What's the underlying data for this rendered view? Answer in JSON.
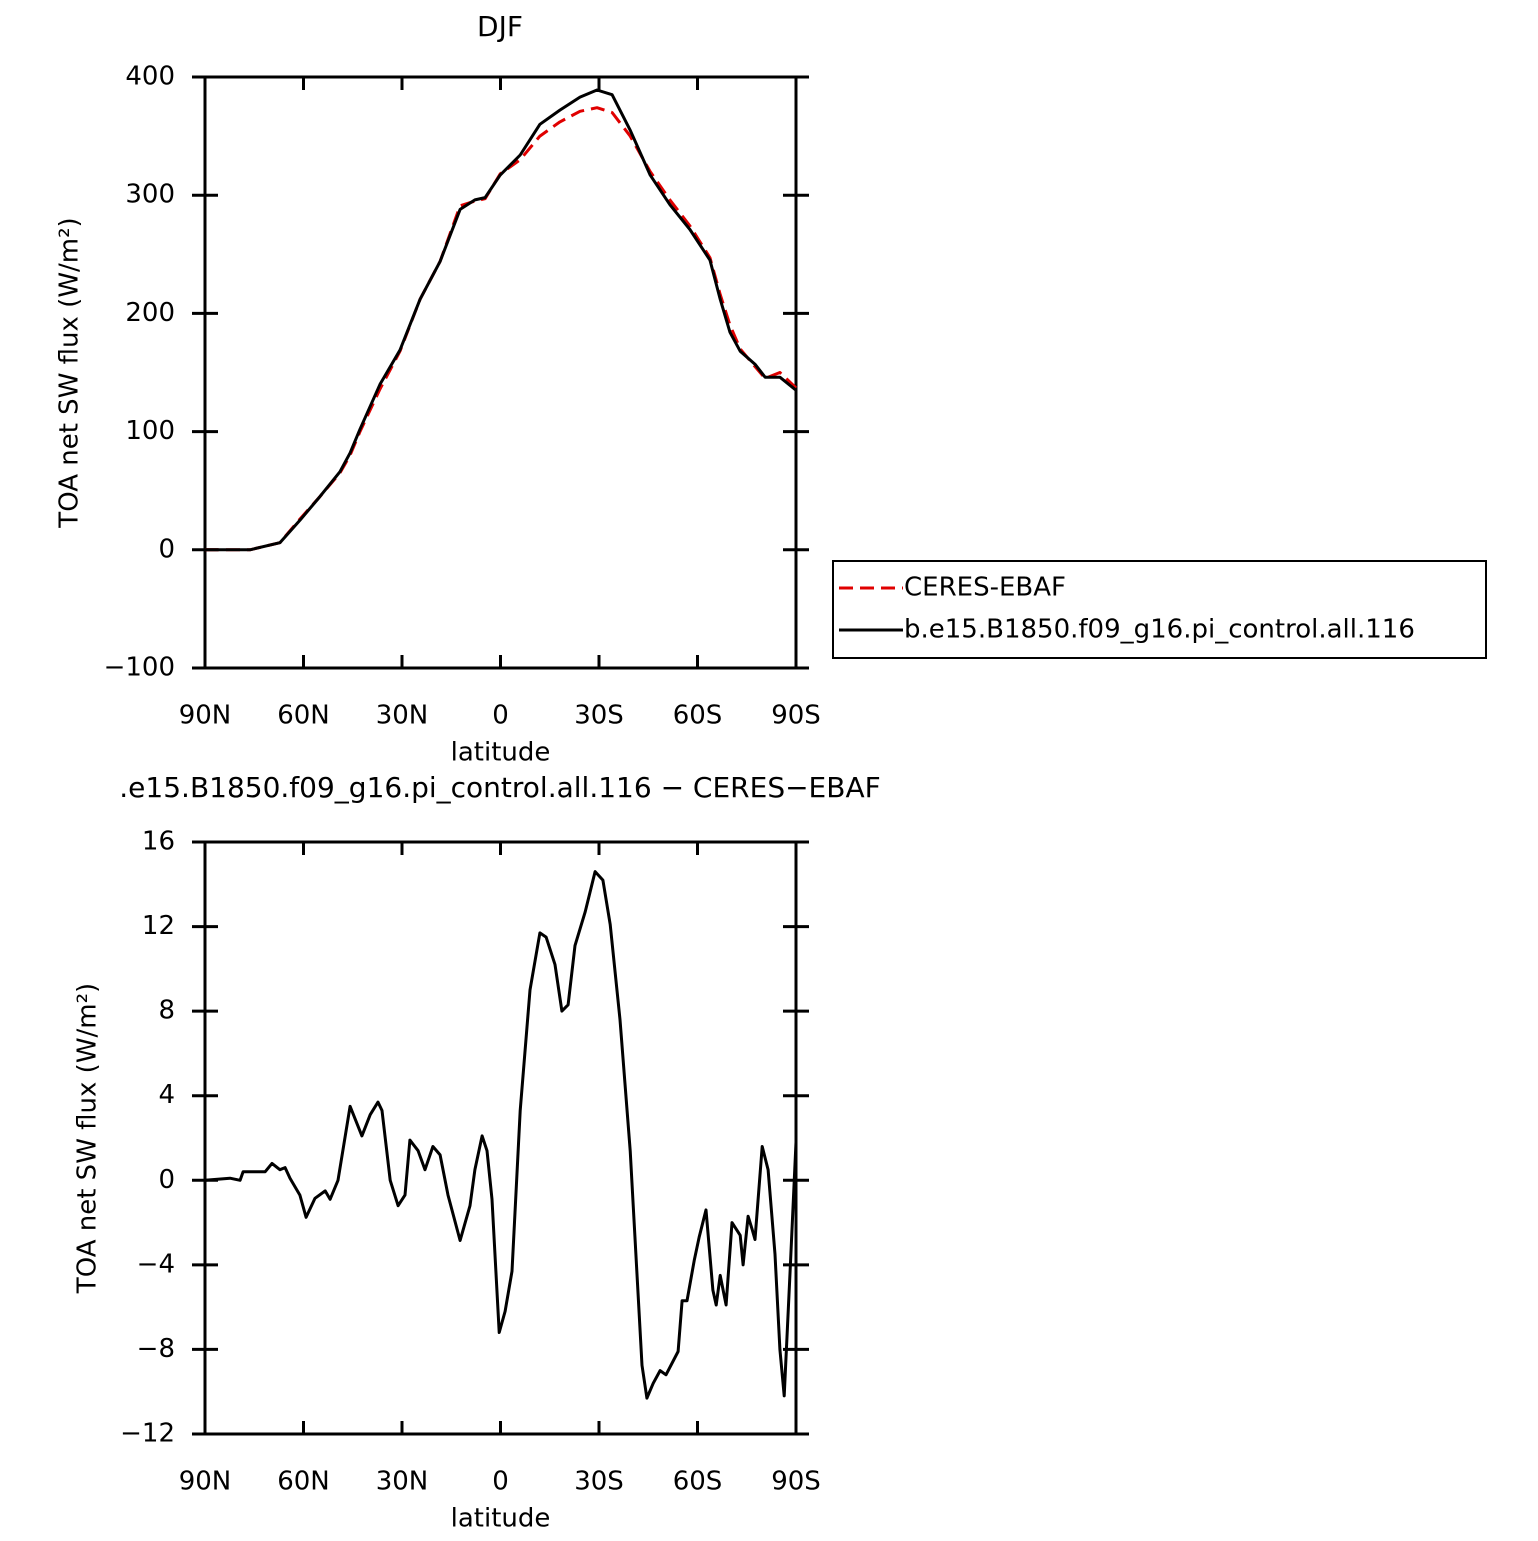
{
  "chart_data": [
    {
      "type": "line",
      "title": "DJF",
      "xlabel": "latitude",
      "ylabel": "TOA net SW flux (W/m²)",
      "xlim": [
        90,
        -90
      ],
      "xticks": [
        {
          "value": 90,
          "label": "90N"
        },
        {
          "value": 60,
          "label": "60N"
        },
        {
          "value": 30,
          "label": "30N"
        },
        0,
        {
          "value": -30,
          "label": "30S"
        },
        {
          "value": -60,
          "label": "60S"
        },
        {
          "value": -90,
          "label": "90S"
        }
      ],
      "ylim": [
        -100,
        400
      ],
      "yticks": [
        {
          "value": -100,
          "label": "−100"
        },
        0,
        100,
        200,
        300,
        400
      ],
      "legend": "right",
      "x": [
        90,
        76.3,
        67.2,
        61.1,
        55,
        48.9,
        45.8,
        42.8,
        36.7,
        30.6,
        24.5,
        18.4,
        12.3,
        7.8,
        4.7,
        0.1,
        -6,
        -12,
        -18.1,
        -24.2,
        -29.4,
        -34,
        -39.5,
        -45.6,
        -51.6,
        -57.7,
        -63.8,
        -66.9,
        -69.9,
        -73,
        -77.5,
        -80.6,
        -85.1,
        -90
      ],
      "series": [
        {
          "name": "CERES-EBAF",
          "color": "#e00000",
          "style": "dashed",
          "values": [
            0,
            0,
            6,
            26,
            45,
            65,
            80,
            100,
            136,
            168,
            212,
            244,
            291,
            295,
            297,
            318,
            330,
            350,
            362,
            371,
            374,
            370,
            350,
            320,
            296,
            274,
            247,
            216,
            190,
            170,
            155,
            145,
            150,
            137
          ]
        },
        {
          "name": "b.e15.B1850.f09_g16.pi_control.all.116",
          "color": "#000000",
          "style": "solid",
          "values": [
            0,
            0,
            6,
            25,
            45,
            66,
            82,
            102,
            140,
            169,
            212,
            244,
            288,
            296,
            298,
            317,
            334,
            360,
            372,
            383,
            389,
            385,
            355,
            317,
            292,
            271,
            245,
            212,
            184,
            168,
            157,
            146,
            146,
            135
          ]
        }
      ]
    },
    {
      "type": "line",
      "title": ".e15.B1850.f09_g16.pi_control.all.116 − CERES−EBAF",
      "xlabel": "latitude",
      "ylabel": "TOA net SW flux (W/m²)",
      "xlim": [
        90,
        -90
      ],
      "xticks": [
        {
          "value": 90,
          "label": "90N"
        },
        {
          "value": 60,
          "label": "60N"
        },
        {
          "value": 30,
          "label": "30N"
        },
        0,
        {
          "value": -30,
          "label": "30S"
        },
        {
          "value": -60,
          "label": "60S"
        },
        {
          "value": -90,
          "label": "90S"
        }
      ],
      "ylim": [
        -12,
        16
      ],
      "yticks": [
        {
          "value": -12,
          "label": "−12"
        },
        {
          "value": -8,
          "label": "−8"
        },
        {
          "value": -4,
          "label": "−4"
        },
        0,
        4,
        8,
        12,
        16
      ],
      "x": [
        90,
        82.4,
        79.3,
        78.4,
        71.7,
        69.6,
        67.2,
        65.6,
        64.1,
        61.1,
        59.2,
        56.5,
        53.4,
        51.9,
        49.5,
        45.8,
        42.2,
        39.7,
        37.3,
        36.1,
        33.6,
        31.2,
        29.1,
        27.6,
        25.1,
        23,
        20.6,
        18.4,
        16,
        12.3,
        9.3,
        7.8,
        5.6,
        4.1,
        2.6,
        0.4,
        -1.4,
        -3.5,
        -6,
        -9,
        -12,
        -13.9,
        -16.6,
        -18.7,
        -20.6,
        -22.7,
        -25.8,
        -28.8,
        -31.2,
        -33.4,
        -36.4,
        -39.5,
        -43.1,
        -44.6,
        -46.5,
        -48.6,
        -50.4,
        -54.1,
        -55.3,
        -56.8,
        -59,
        -60.5,
        -62.6,
        -64.7,
        -65.7,
        -66.9,
        -68.7,
        -70.5,
        -73,
        -73.9,
        -75.4,
        -76.6,
        -77.5,
        -79.7,
        -81.5,
        -83.6,
        -85.1,
        -86.4,
        -88.2,
        -90
      ],
      "values": [
        0,
        0.1,
        0,
        0.4,
        0.4,
        0.8,
        0.5,
        0.6,
        0.1,
        -0.7,
        -1.75,
        -0.85,
        -0.5,
        -0.9,
        0,
        3.5,
        2.1,
        3.1,
        3.7,
        3.3,
        0,
        -1.2,
        -0.7,
        1.9,
        1.4,
        0.5,
        1.6,
        1.2,
        -0.7,
        -2.85,
        -1.2,
        0.5,
        2.1,
        1.4,
        -0.9,
        -7.2,
        -6.2,
        -4.3,
        3.3,
        9,
        11.7,
        11.5,
        10.2,
        8,
        8.3,
        11.1,
        12.7,
        14.6,
        14.2,
        12.1,
        7.6,
        1.4,
        -8.75,
        -10.3,
        -9.6,
        -9,
        -9.2,
        -8.1,
        -5.7,
        -5.7,
        -3.8,
        -2.7,
        -1.4,
        -5.2,
        -5.9,
        -4.5,
        -5.9,
        -2,
        -2.6,
        -4,
        -1.7,
        -2.3,
        -2.8,
        1.6,
        0.5,
        -3.5,
        -8,
        -10.2,
        -4.3,
        1.8
      ],
      "color": "#000000"
    }
  ]
}
